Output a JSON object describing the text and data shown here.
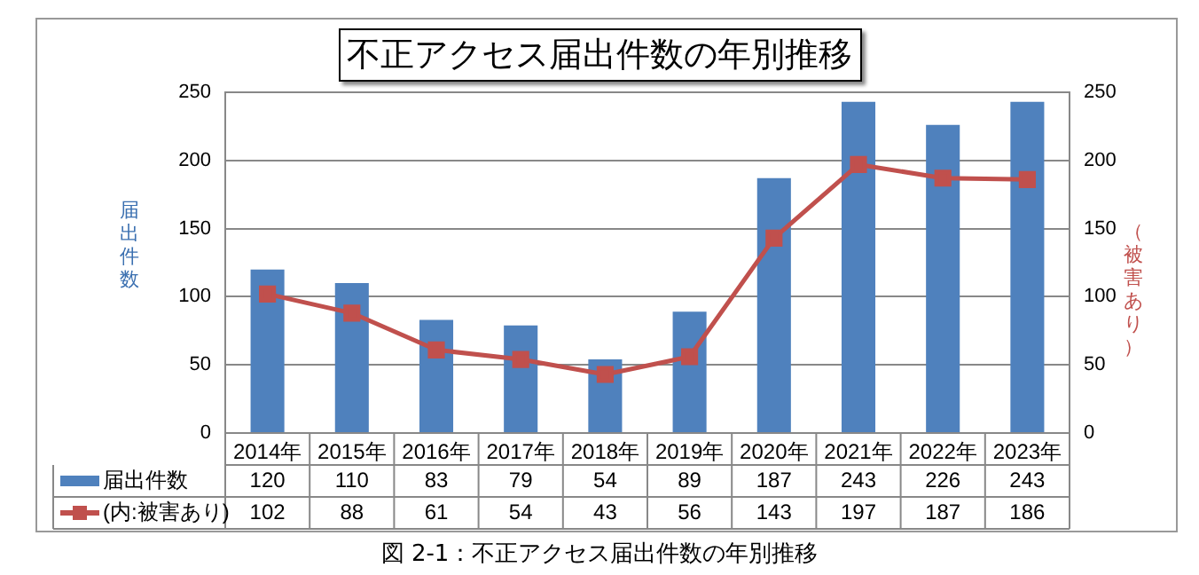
{
  "chart_data": {
    "type": "bar",
    "title": "不正アクセス届出件数の年別推移",
    "ylabel": "届出件数",
    "y2label": "（被害あり）",
    "categories": [
      "2014年",
      "2015年",
      "2016年",
      "2017年",
      "2018年",
      "2019年",
      "2020年",
      "2021年",
      "2022年",
      "2023年"
    ],
    "series": [
      {
        "name": "届出件数",
        "color": "#4f81bd",
        "values": [
          120,
          110,
          83,
          79,
          54,
          89,
          187,
          243,
          226,
          243
        ]
      },
      {
        "name": "(内:被害あり)",
        "type": "line",
        "axis": "y2",
        "color": "#c0504d",
        "values": [
          102,
          88,
          61,
          54,
          43,
          56,
          143,
          197,
          187,
          186
        ]
      }
    ],
    "ylim": [
      0,
      250
    ],
    "yticks": [
      0,
      50,
      100,
      150,
      200,
      250
    ],
    "y2lim": [
      0,
      250
    ],
    "y2ticks": [
      0,
      50,
      100,
      150,
      200,
      250
    ],
    "grid": "y",
    "legend": "bottom",
    "marker": "square",
    "line_style": "solid",
    "data_labels": true,
    "annotations": [
      "図 2-1：不正アクセス届出件数の年別推移"
    ]
  }
}
